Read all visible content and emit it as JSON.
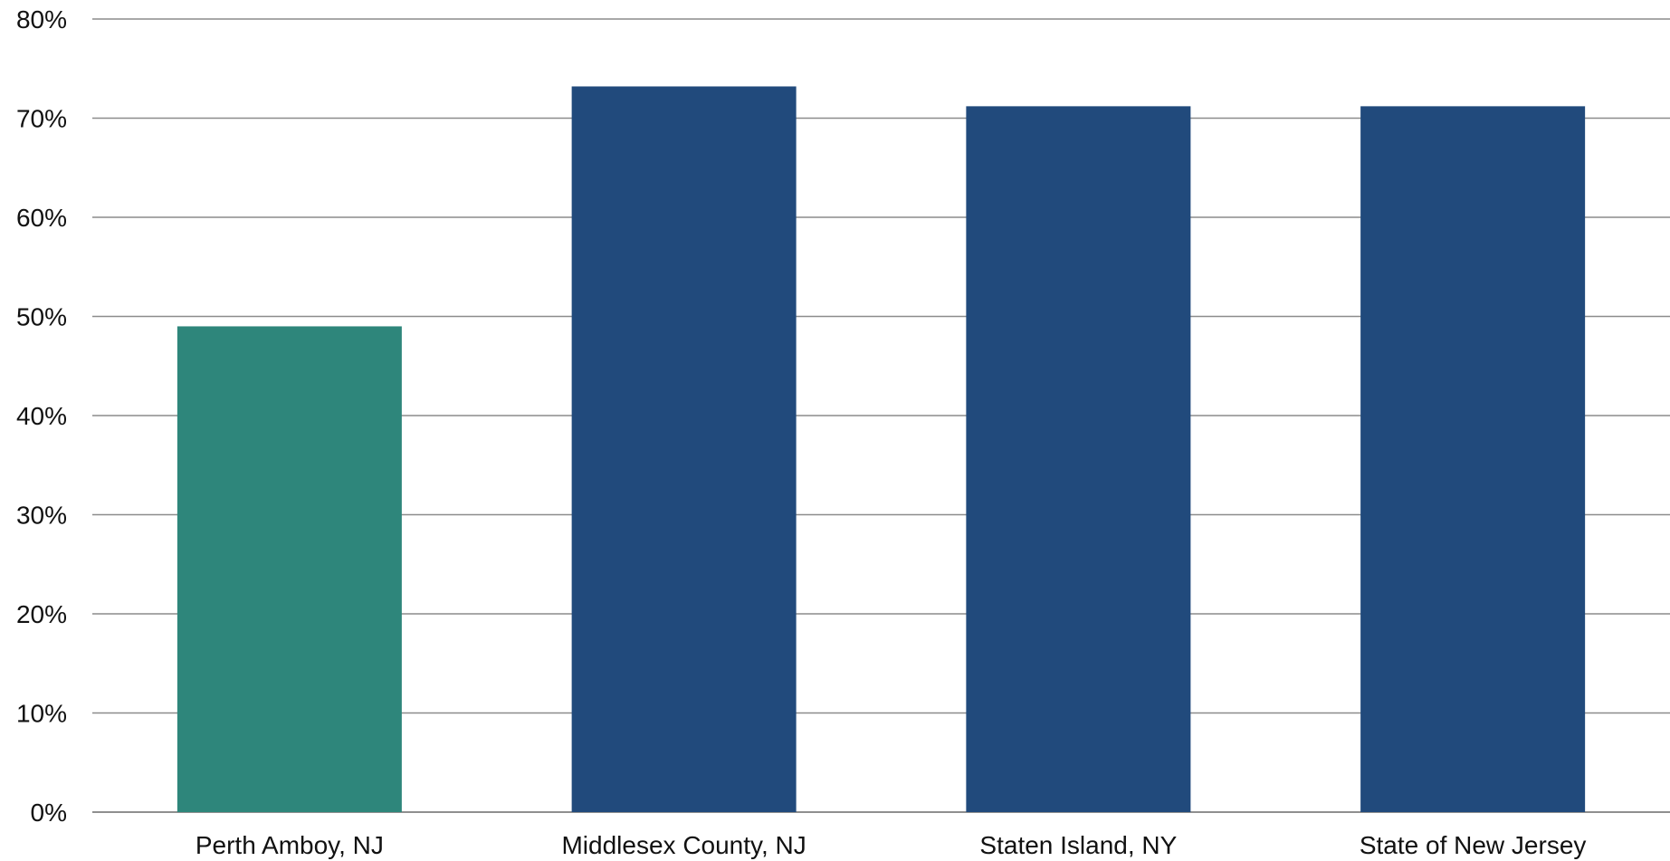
{
  "chart_data": {
    "type": "bar",
    "title": "",
    "xlabel": "",
    "ylabel": "",
    "categories": [
      "Perth Amboy, NJ",
      "Middlesex County, NJ",
      "Staten Island, NY",
      "State of New Jersey"
    ],
    "values": [
      49,
      73.2,
      71.2,
      71.2
    ],
    "bar_colors": [
      "#2e867b",
      "#214a7c",
      "#214a7c",
      "#214a7c"
    ],
    "ylim": [
      0,
      80
    ],
    "yticks": [
      0,
      10,
      20,
      30,
      40,
      50,
      60,
      70,
      80
    ],
    "ytick_labels": [
      "0%",
      "10%",
      "20%",
      "30%",
      "40%",
      "50%",
      "60%",
      "70%",
      "80%"
    ],
    "grid": true,
    "legend": "none"
  }
}
